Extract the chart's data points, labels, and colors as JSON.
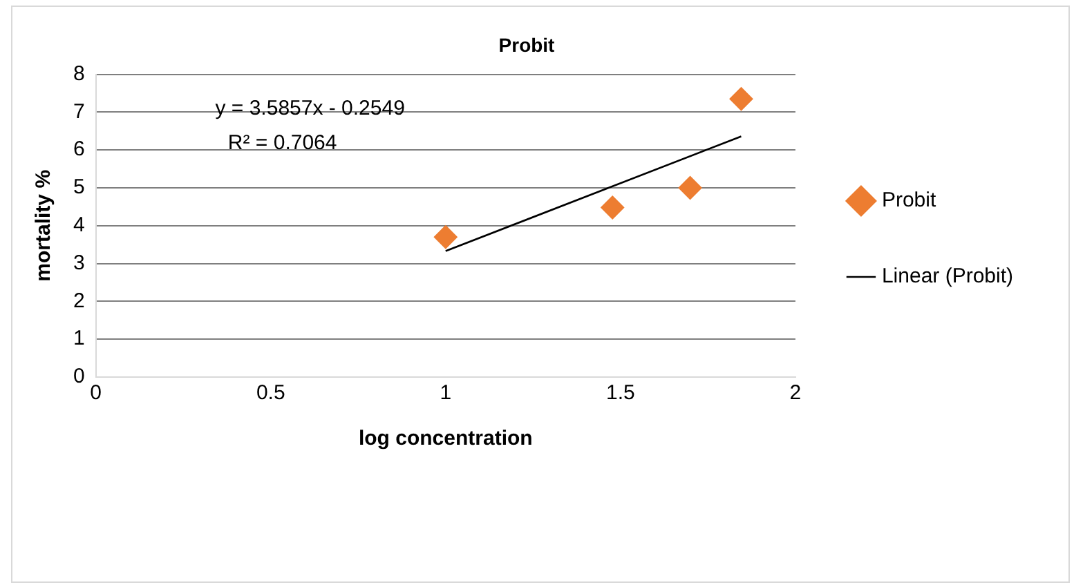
{
  "chart_data": {
    "type": "scatter",
    "title": "Probit",
    "xlabel": "log concentration",
    "ylabel": "mortality %",
    "x": [
      1.0,
      1.477,
      1.699,
      1.845
    ],
    "series": [
      {
        "name": "Probit",
        "color": "#ed7d31",
        "marker": "diamond",
        "values": [
          3.7,
          4.48,
          5.0,
          7.35
        ]
      },
      {
        "name": "Linear (Probit)",
        "type": "line",
        "color": "#000000",
        "marker": "none",
        "x": [
          1.0,
          1.845
        ],
        "values": [
          3.33,
          6.36
        ]
      }
    ],
    "xlim": [
      0,
      2
    ],
    "xticks": [
      0,
      0.5,
      1,
      1.5,
      2
    ],
    "ylim": [
      0,
      8
    ],
    "yticks": [
      0,
      1,
      2,
      3,
      4,
      5,
      6,
      7,
      8
    ],
    "grid": "y",
    "legend": "right",
    "annotations": [
      "y = 3.5857x - 0.2549",
      "R² = 0.7064"
    ]
  }
}
